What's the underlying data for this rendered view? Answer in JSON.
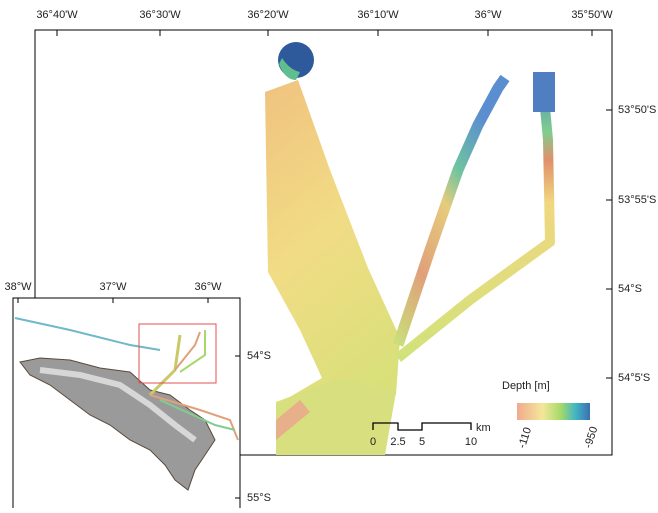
{
  "map": {
    "top_axis_labels": [
      "36°40'W",
      "36°30'W",
      "36°20'W",
      "36°10'W",
      "36°W",
      "35°50'W"
    ],
    "right_axis_labels": [
      "53°50'S",
      "53°55'S",
      "54°S",
      "54°5'S"
    ],
    "legend": {
      "title": "Depth [m]",
      "labels": [
        "-110",
        "-950"
      ]
    },
    "scale_bar": {
      "labels": [
        "0",
        "2.5",
        "5",
        "10"
      ],
      "unit": "km"
    },
    "inset": {
      "top_axis_labels": [
        "38°W",
        "37°W",
        "36°W"
      ],
      "right_axis_labels": [
        "54°S",
        "55°S"
      ]
    }
  }
}
